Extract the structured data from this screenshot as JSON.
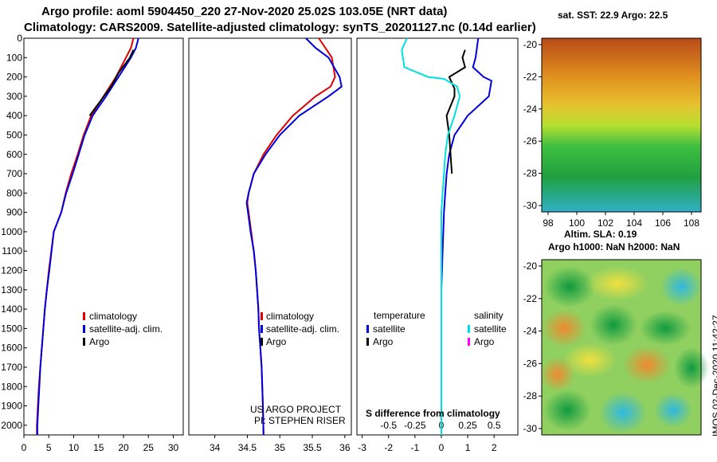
{
  "title_line1": "Argo profile: aoml 5904450_220 27-Nov-2020 25.02S 103.05E (NRT data)",
  "title_line2": "Climatology: CARS2009. Satellite-adjusted climatology: synTS_20201127.nc (0.14d earlier)",
  "chart_data": [
    {
      "type": "line",
      "name": "temperature-profile",
      "xlim": [
        0,
        32
      ],
      "ylim": [
        2050,
        0
      ],
      "xticks": [
        "0",
        "5",
        "10",
        "15",
        "20",
        "25",
        "30"
      ],
      "yticks": [
        "0",
        "100",
        "200",
        "300",
        "400",
        "500",
        "600",
        "700",
        "800",
        "900",
        "1000",
        "1100",
        "1200",
        "1300",
        "1400",
        "1500",
        "1600",
        "1700",
        "1800",
        "1900",
        "2000"
      ],
      "series": [
        {
          "name": "climatology",
          "color": "#dd0000",
          "x": [
            22.0,
            21.5,
            20.5,
            18.5,
            16.0,
            13.5,
            12.0,
            10.8,
            9.5,
            8.4,
            7.5,
            6.0,
            5.0,
            4.6,
            4.2,
            3.9,
            3.6,
            3.3,
            3.0,
            2.8,
            2.6,
            2.6
          ],
          "y": [
            0,
            50,
            100,
            200,
            300,
            400,
            500,
            600,
            700,
            800,
            900,
            1000,
            1200,
            1300,
            1400,
            1500,
            1600,
            1700,
            1800,
            1900,
            2000,
            2050
          ]
        },
        {
          "name": "satellite-adj. clim.",
          "color": "#0000dd",
          "x": [
            23.0,
            22.5,
            21.5,
            19.0,
            16.5,
            13.8,
            12.2,
            11.0,
            9.8,
            8.5,
            7.5,
            6.0,
            5.1,
            4.6,
            4.2,
            3.9,
            3.6,
            3.3,
            3.1,
            2.9,
            2.7,
            2.7
          ],
          "y": [
            0,
            50,
            100,
            200,
            300,
            400,
            500,
            600,
            700,
            800,
            900,
            1000,
            1200,
            1300,
            1400,
            1500,
            1600,
            1700,
            1800,
            1900,
            2000,
            2050
          ]
        },
        {
          "name": "Argo",
          "color": "#000000",
          "x": [
            22.0,
            21.3,
            19.0,
            17.5,
            15.5,
            13.2
          ],
          "y": [
            60,
            100,
            180,
            250,
            320,
            400
          ]
        }
      ],
      "legend": [
        "climatology",
        "satellite-adj. clim.",
        "Argo"
      ]
    },
    {
      "type": "line",
      "name": "salinity-profile",
      "xlim": [
        33.6,
        36.1
      ],
      "ylim": [
        2050,
        0
      ],
      "xticks": [
        "34",
        "34.5",
        "35",
        "35.5",
        "36"
      ],
      "series": [
        {
          "name": "climatology",
          "color": "#dd0000",
          "x": [
            35.6,
            35.7,
            35.8,
            35.85,
            35.78,
            35.55,
            35.2,
            34.95,
            34.75,
            34.6,
            34.52,
            34.5,
            34.52,
            34.56,
            34.6,
            34.63,
            34.65,
            34.67,
            34.68,
            34.7,
            34.72,
            34.73,
            34.74,
            34.75
          ],
          "y": [
            0,
            50,
            100,
            200,
            250,
            300,
            400,
            500,
            600,
            700,
            800,
            850,
            900,
            1000,
            1100,
            1200,
            1300,
            1400,
            1500,
            1600,
            1700,
            1800,
            1900,
            2050
          ]
        },
        {
          "name": "satellite-adj. clim.",
          "color": "#0000dd",
          "x": [
            35.4,
            35.55,
            35.75,
            35.92,
            35.95,
            35.75,
            35.3,
            35.0,
            34.78,
            34.6,
            34.52,
            34.49,
            34.51,
            34.55,
            34.6,
            34.63,
            34.65,
            34.67,
            34.68,
            34.7,
            34.72,
            34.73,
            34.74,
            34.75
          ],
          "y": [
            0,
            50,
            100,
            200,
            250,
            300,
            400,
            500,
            600,
            700,
            800,
            850,
            900,
            1000,
            1100,
            1200,
            1300,
            1400,
            1500,
            1600,
            1700,
            1800,
            1900,
            2050
          ]
        }
      ],
      "legend": [
        "climatology",
        "satellite-adj. clim.",
        "Argo"
      ],
      "annotations": [
        "US ARGO PROJECT",
        "PI: STEPHEN RISER"
      ]
    },
    {
      "type": "line",
      "name": "difference-from-climatology",
      "title": "S difference from climatology",
      "xlim": [
        -3.2,
        2.9
      ],
      "ylim": [
        2050,
        0
      ],
      "xticks_top": [
        "-0.5",
        "-0.25",
        "0",
        "0.25",
        "0.5"
      ],
      "xticks": [
        "-3",
        "-2",
        "-1",
        "0",
        "1",
        "2"
      ],
      "series": [
        {
          "name": "temperature satellite",
          "color": "#0000dd",
          "x": [
            1.4,
            1.3,
            1.2,
            1.6,
            1.9,
            1.8,
            1.0,
            0.5,
            0.3,
            0.2,
            0.15,
            0.1,
            0.05,
            0.0,
            0.0,
            0.0,
            0.0
          ],
          "y": [
            0,
            100,
            150,
            200,
            220,
            300,
            400,
            500,
            600,
            700,
            800,
            900,
            1100,
            1300,
            1500,
            1800,
            2050
          ]
        },
        {
          "name": "temperature Argo",
          "color": "#000000",
          "x": [
            0.9,
            0.8,
            0.9,
            0.3,
            0.5,
            0.5,
            0.2,
            0.3,
            0.4
          ],
          "y": [
            60,
            100,
            150,
            200,
            260,
            300,
            400,
            500,
            700
          ]
        },
        {
          "name": "salinity satellite",
          "color": "#00e0e0",
          "x": [
            -1.3,
            -1.5,
            -1.4,
            -0.5,
            0.1,
            0.6,
            0.7,
            0.5,
            0.25,
            0.15,
            0.1,
            0.05,
            0.0,
            0.0,
            0.0,
            0.0
          ],
          "y": [
            0,
            60,
            150,
            200,
            210,
            250,
            300,
            400,
            500,
            600,
            700,
            800,
            900,
            1100,
            1500,
            2050
          ]
        },
        {
          "name": "salinity Argo",
          "color": "#ff00ff",
          "x": [],
          "y": []
        }
      ],
      "legend_temperature": {
        "heading": "temperature",
        "items": [
          "satellite",
          "Argo"
        ]
      },
      "legend_salinity": {
        "heading": "salinity",
        "items": [
          "satellite",
          "Argo"
        ]
      }
    },
    {
      "type": "heatmap",
      "name": "sst-map",
      "title": "sat. SST: 22.9 Argo: 22.5",
      "xticks": [
        "98",
        "100",
        "102",
        "104",
        "106",
        "108"
      ],
      "yticks": [
        "-20",
        "-22",
        "-24",
        "-26",
        "-28",
        "-30"
      ]
    },
    {
      "type": "heatmap",
      "name": "sla-map",
      "title": "Altim. SLA: 0.19",
      "subtitle": "Argo h1000: NaN h2000: NaN",
      "yticks": [
        "-20",
        "-22",
        "-24",
        "-26",
        "-28",
        "-30"
      ]
    }
  ],
  "stamp": "IMOS 02-Dec-2020 11:42:27"
}
